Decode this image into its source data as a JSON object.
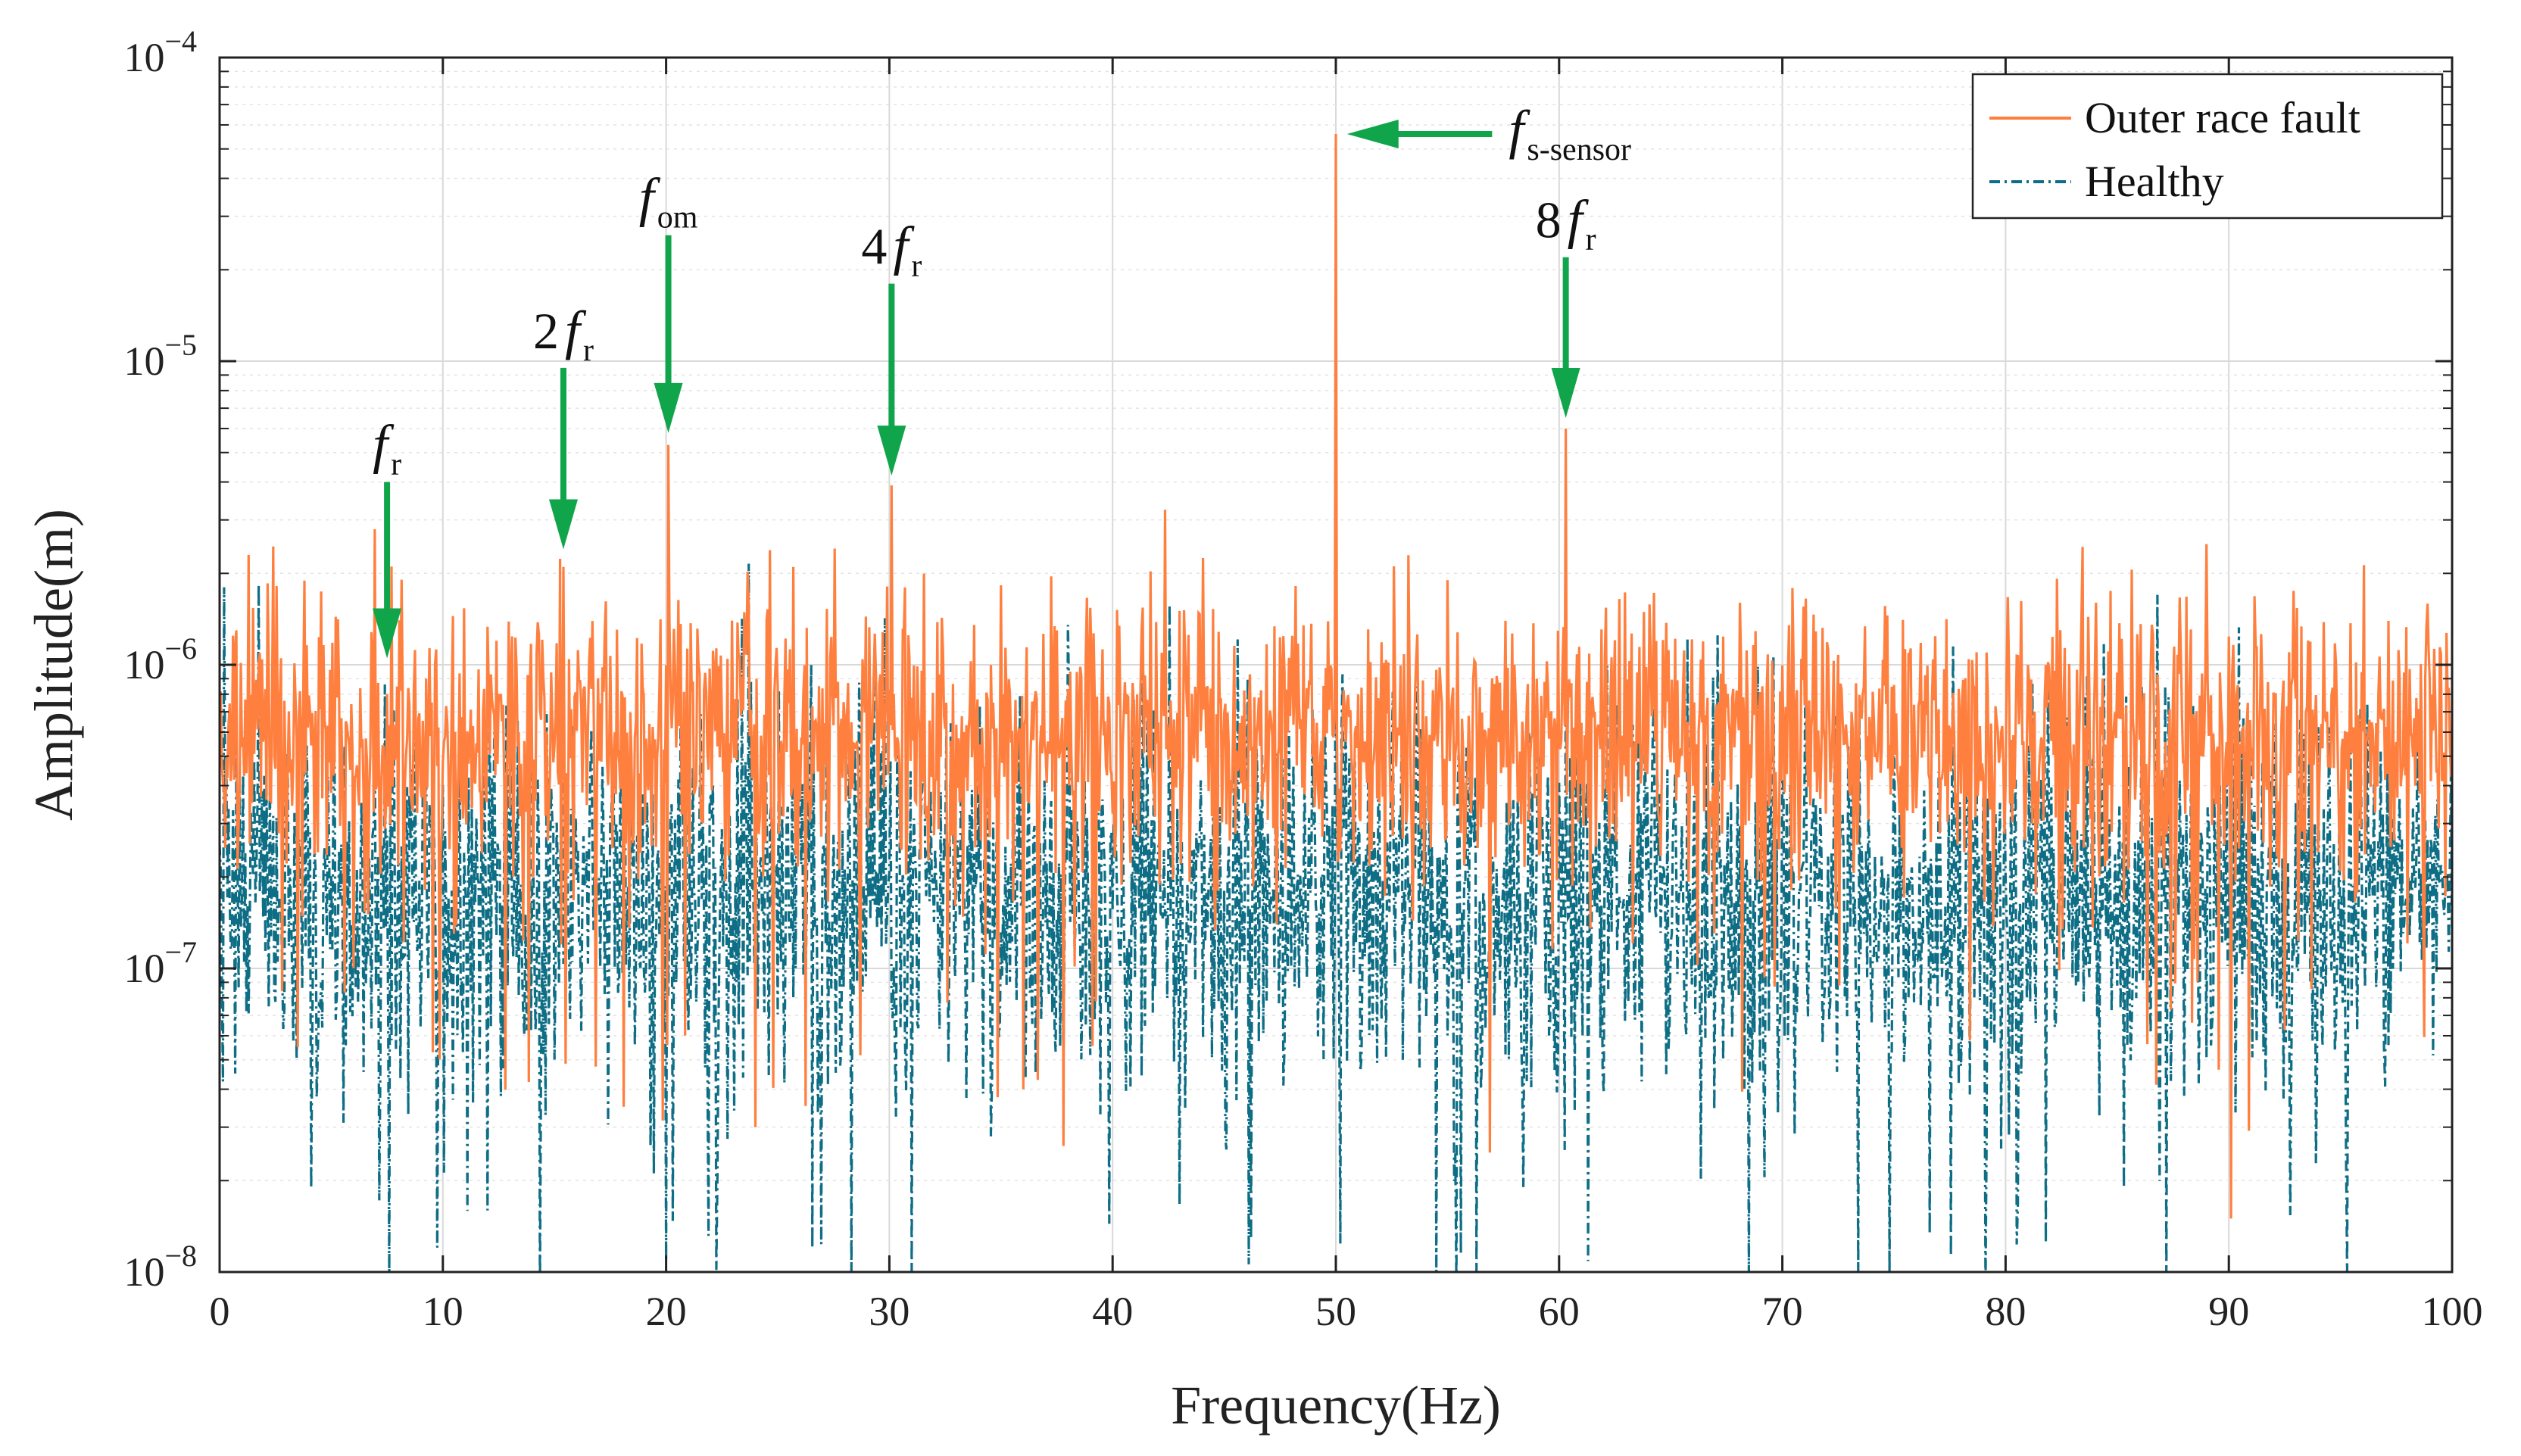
{
  "chart_data": {
    "type": "line",
    "title": "",
    "xlabel": "Frequency(Hz)",
    "ylabel": "Amplitude(m)",
    "xlim": [
      0,
      100
    ],
    "ylim": [
      1e-08,
      0.0001
    ],
    "yscale": "log",
    "grid": true,
    "legend_position": "top-right",
    "xticks": [
      0,
      10,
      20,
      30,
      40,
      50,
      60,
      70,
      80,
      90,
      100
    ],
    "yticks": [
      {
        "exp": -8,
        "base": "10",
        "power": "−8"
      },
      {
        "exp": -7,
        "base": "10",
        "power": "−7"
      },
      {
        "exp": -6,
        "base": "10",
        "power": "−6"
      },
      {
        "exp": -5,
        "base": "10",
        "power": "−5"
      },
      {
        "exp": -4,
        "base": "10",
        "power": "−4"
      }
    ],
    "series": [
      {
        "name": "Outer race fault",
        "color": "#FF7F3F",
        "style": "solid",
        "noise_floor": 6e-07,
        "noise_spread_decades": 0.5,
        "peaks": [
          {
            "x": 1.3,
            "y": 2.3e-06
          },
          {
            "x": 7.5,
            "y": 8e-07
          },
          {
            "x": 15.4,
            "y": 2.1e-06
          },
          {
            "x": 20.1,
            "y": 5.3e-06
          },
          {
            "x": 30.1,
            "y": 3.9e-06
          },
          {
            "x": 50.0,
            "y": 5.6e-05
          },
          {
            "x": 55.0,
            "y": 1.9e-06
          },
          {
            "x": 60.3,
            "y": 6e-06
          }
        ],
        "dips": [
          {
            "x": 3.5,
            "y": 5.5e-08
          },
          {
            "x": 18.1,
            "y": 3.5e-08
          },
          {
            "x": 24.0,
            "y": 3e-08
          },
          {
            "x": 36.0,
            "y": 4e-08
          },
          {
            "x": 90.1,
            "y": 1.5e-08
          }
        ]
      },
      {
        "name": "Healthy",
        "color": "#0E6E85",
        "style": "dash-dot",
        "noise_floor": 1.8e-07,
        "noise_spread_decades": 0.7,
        "peaks": [
          {
            "x": 0.2,
            "y": 1.8e-06
          },
          {
            "x": 26.5,
            "y": 1e-06
          },
          {
            "x": 50.0,
            "y": 3e-06
          },
          {
            "x": 60.3,
            "y": 1.2e-06
          },
          {
            "x": 86.8,
            "y": 1.7e-06
          }
        ],
        "dips": [
          {
            "x": 7.6,
            "y": 1e-08
          },
          {
            "x": 28.3,
            "y": 1e-08
          },
          {
            "x": 31.0,
            "y": 1e-08
          },
          {
            "x": 54.5,
            "y": 1e-08
          },
          {
            "x": 56.3,
            "y": 1e-08
          },
          {
            "x": 68.5,
            "y": 1e-08
          },
          {
            "x": 73.4,
            "y": 1e-08
          },
          {
            "x": 74.8,
            "y": 1e-08
          },
          {
            "x": 95.3,
            "y": 1e-08
          }
        ]
      }
    ],
    "annotations": [
      {
        "id": "fr",
        "coef": "",
        "sym": "f",
        "sub": "r",
        "x": 7.5,
        "arrow_top": 4e-06,
        "arrow_tip": 1.05e-06,
        "direction": "down"
      },
      {
        "id": "2fr",
        "coef": "2",
        "sym": "f",
        "sub": "r",
        "x": 15.4,
        "arrow_top": 9.5e-06,
        "arrow_tip": 2.4e-06,
        "direction": "down"
      },
      {
        "id": "fom",
        "coef": "",
        "sym": "f",
        "sub": "om",
        "x": 20.1,
        "arrow_top": 2.6e-05,
        "arrow_tip": 5.8e-06,
        "direction": "down"
      },
      {
        "id": "4fr",
        "coef": "4",
        "sym": "f",
        "sub": "r",
        "x": 30.1,
        "arrow_top": 1.8e-05,
        "arrow_tip": 4.2e-06,
        "direction": "down"
      },
      {
        "id": "8fr",
        "coef": "8",
        "sym": "f",
        "sub": "r",
        "x": 60.3,
        "arrow_top": 2.2e-05,
        "arrow_tip": 6.5e-06,
        "direction": "down"
      },
      {
        "id": "fs",
        "coef": "",
        "sym": "f",
        "sub": "s-sensor",
        "x_tip": 50.5,
        "x_tail": 57.0,
        "y": 5.6e-05,
        "direction": "left"
      }
    ],
    "arrow_color": "#10A54B"
  }
}
